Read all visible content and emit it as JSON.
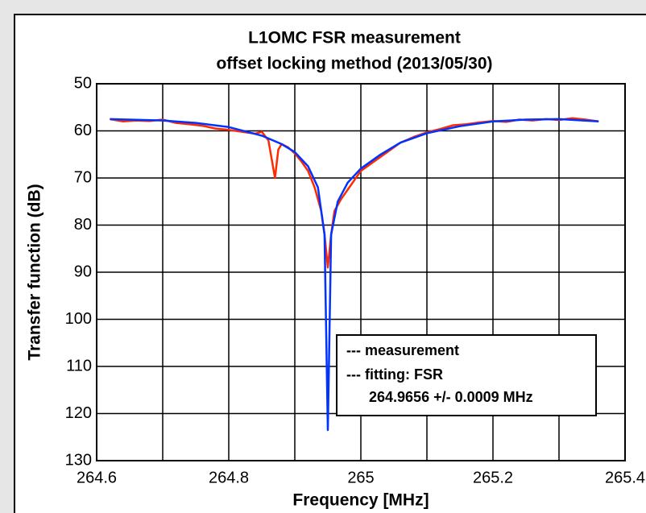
{
  "chart_data": {
    "type": "line",
    "title": "L1OMC FSR measurement",
    "subtitle": "offset locking method (2013/05/30)",
    "xlabel": "Frequency [MHz]",
    "ylabel": "Transfer function (dB)",
    "xlim": [
      264.6,
      265.4
    ],
    "xticks": [
      264.6,
      264.8,
      265,
      265.2,
      265.4
    ],
    "x_minor_ticks": [
      264.7,
      264.9,
      265.1,
      265.3
    ],
    "ylim": [
      50,
      130
    ],
    "y_inverted": true,
    "yticks": [
      50,
      60,
      70,
      80,
      90,
      100,
      110,
      120,
      130
    ],
    "grid": true,
    "legend": "lower right",
    "annotation": "264.9656 +/- 0.0009 MHz",
    "series": [
      {
        "name": "--- measurement",
        "color": "#ff2a00",
        "x": [
          264.62,
          264.64,
          264.66,
          264.68,
          264.7,
          264.72,
          264.74,
          264.76,
          264.78,
          264.8,
          264.82,
          264.84,
          264.85,
          264.86,
          264.865,
          264.87,
          264.875,
          264.88,
          264.89,
          264.9,
          264.91,
          264.92,
          264.93,
          264.94,
          264.945,
          264.95,
          264.955,
          264.96,
          264.97,
          264.98,
          264.99,
          265.0,
          265.02,
          265.04,
          265.06,
          265.08,
          265.1,
          265.12,
          265.14,
          265.16,
          265.18,
          265.2,
          265.22,
          265.24,
          265.26,
          265.28,
          265.3,
          265.32,
          265.34,
          265.36
        ],
        "values": [
          57.5,
          58,
          57.8,
          57.9,
          57.6,
          58.3,
          58.6,
          58.9,
          59.5,
          59.8,
          60.2,
          60.6,
          60.2,
          62,
          66,
          70,
          64,
          62.8,
          63.5,
          64.8,
          66.5,
          68.5,
          72,
          77,
          82,
          89,
          82,
          77,
          74.5,
          72.5,
          70.5,
          68.5,
          66.5,
          64.5,
          62.5,
          61.3,
          60.3,
          59.6,
          58.8,
          58.6,
          58.2,
          57.9,
          58.1,
          57.6,
          57.8,
          57.5,
          57.7,
          57.3,
          57.6,
          58
        ]
      },
      {
        "name": "--- fitting: FSR",
        "color": "#0033ff",
        "x": [
          264.62,
          264.7,
          264.75,
          264.8,
          264.85,
          264.88,
          264.9,
          264.92,
          264.935,
          264.945,
          264.95,
          264.955,
          264.965,
          264.98,
          265.0,
          265.03,
          265.06,
          265.1,
          265.15,
          265.2,
          265.25,
          265.3,
          265.36
        ],
        "values": [
          57.5,
          57.8,
          58.3,
          59.2,
          61,
          62.8,
          64.5,
          67.5,
          72,
          82,
          123.5,
          82,
          75,
          71,
          68,
          65,
          62.5,
          60.5,
          59,
          58,
          57.6,
          57.5,
          58
        ]
      }
    ]
  }
}
